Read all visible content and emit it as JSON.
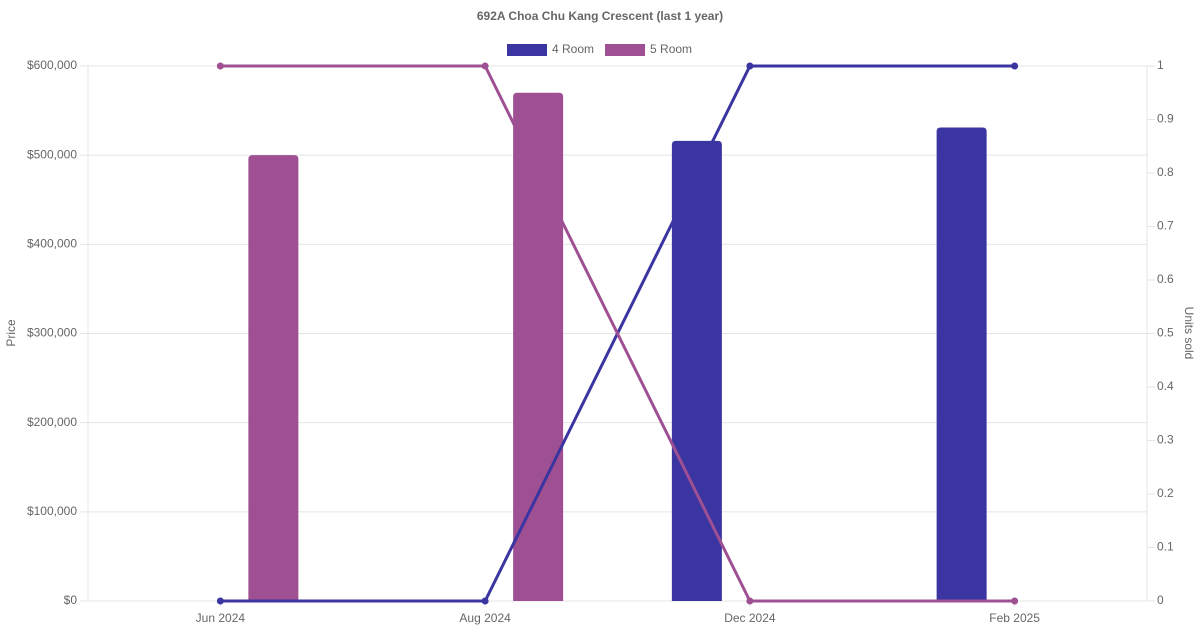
{
  "chart_data": {
    "type": "bar-line",
    "title": "692A Choa Chu Kang Crescent (last 1 year)",
    "categories": [
      "Jun 2024",
      "Aug 2024",
      "Dec 2024",
      "Feb 2025"
    ],
    "series": [
      {
        "name": "4 Room",
        "color": "#3a35a0",
        "values": [
          null,
          null,
          516000,
          531000
        ],
        "units_sold": [
          0,
          0,
          1,
          1
        ]
      },
      {
        "name": "5 Room",
        "color": "#9e5093",
        "values": [
          500000,
          570000,
          null,
          null
        ],
        "units_sold": [
          1,
          1,
          0,
          0
        ]
      }
    ],
    "y_label": "Price",
    "y2_label": "Units sold",
    "ylim": [
      0,
      600000
    ],
    "yticks": [
      {
        "value": 0,
        "label": "$0"
      },
      {
        "value": 100000,
        "label": "$100,000"
      },
      {
        "value": 200000,
        "label": "$200,000"
      },
      {
        "value": 300000,
        "label": "$300,000"
      },
      {
        "value": 400000,
        "label": "$400,000"
      },
      {
        "value": 500000,
        "label": "$500,000"
      },
      {
        "value": 600000,
        "label": "$600,000"
      }
    ],
    "y2lim": [
      0,
      1
    ],
    "y2ticks": [
      0,
      0.1,
      0.2,
      0.3,
      0.4,
      0.5,
      0.6,
      0.7,
      0.8,
      0.9,
      1
    ],
    "grid": true
  }
}
